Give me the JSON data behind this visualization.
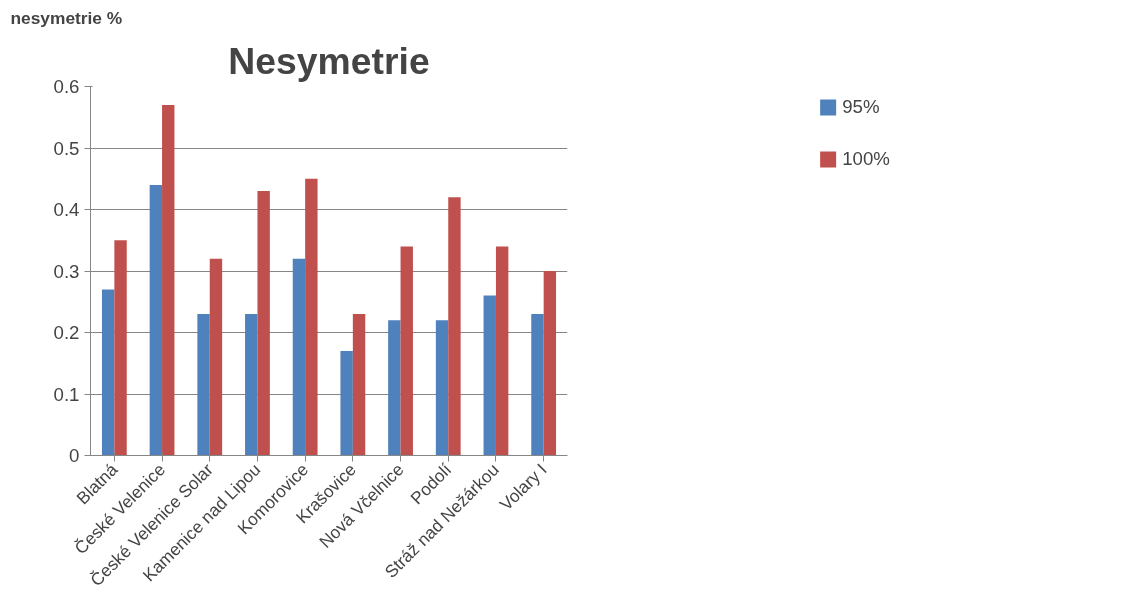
{
  "chart_data": {
    "type": "bar",
    "title": "Nesymetrie",
    "ylabel": "nesymetrie %",
    "categories": [
      "Blatná",
      "České Velenice",
      "České Velenice Solar",
      "Kamenice nad Lipou",
      "Komorovice",
      "Krašovice",
      "Nová Včelnice",
      "Podolí",
      "Stráž nad Nežárkou",
      "Volary I"
    ],
    "series": [
      {
        "name": "95%",
        "color": "#4f81bd",
        "values": [
          0.27,
          0.44,
          0.23,
          0.23,
          0.32,
          0.17,
          0.22,
          0.22,
          0.26,
          0.23
        ]
      },
      {
        "name": "100%",
        "color": "#c0504d",
        "values": [
          0.35,
          0.57,
          0.32,
          0.43,
          0.45,
          0.23,
          0.34,
          0.42,
          0.34,
          0.3
        ]
      }
    ],
    "ylim": [
      0,
      0.6
    ],
    "yticks": [
      0,
      0.1,
      0.2,
      0.3,
      0.4,
      0.5,
      0.6
    ],
    "grid": "y",
    "legend": "right"
  }
}
